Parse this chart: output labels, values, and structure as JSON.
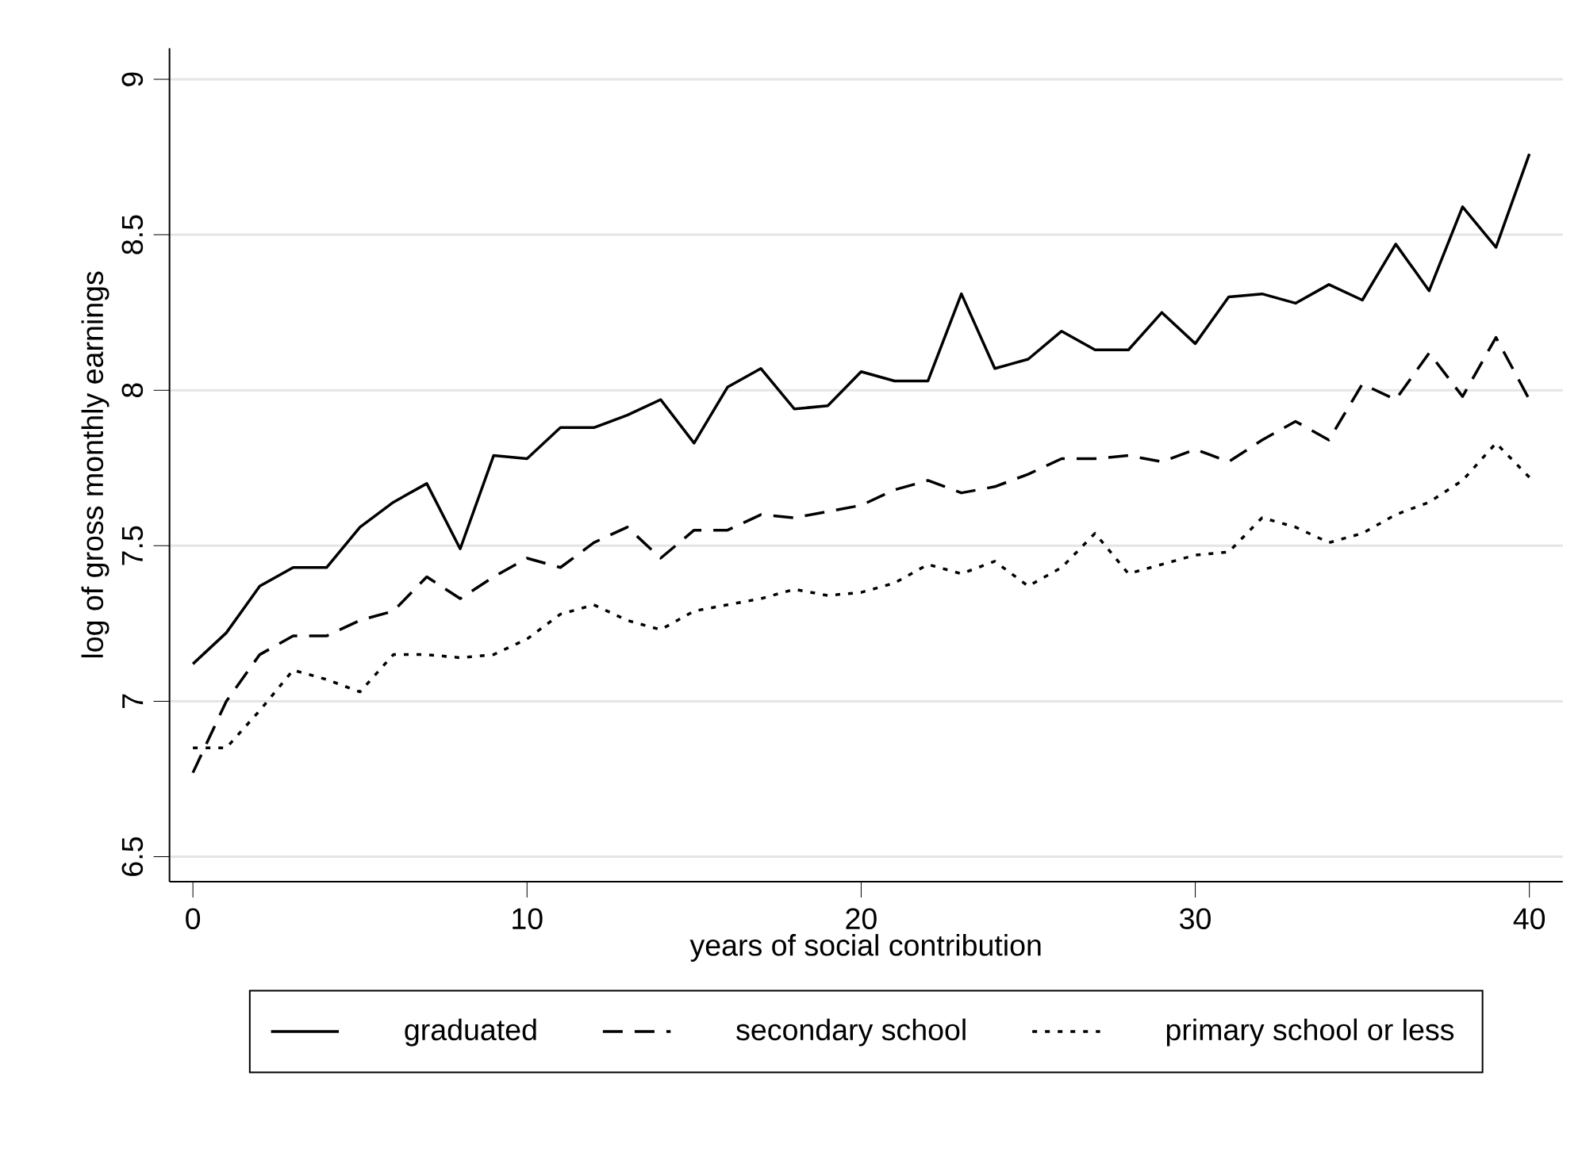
{
  "chart_data": {
    "type": "line",
    "xlabel": "years of social contribution",
    "ylabel": "log of gross monthly earnings",
    "x": [
      0,
      1,
      2,
      3,
      4,
      5,
      6,
      7,
      8,
      9,
      10,
      11,
      12,
      13,
      14,
      15,
      16,
      17,
      18,
      19,
      20,
      21,
      22,
      23,
      24,
      25,
      26,
      27,
      28,
      29,
      30,
      31,
      32,
      33,
      34,
      35,
      36,
      37,
      38,
      39,
      40
    ],
    "series": [
      {
        "name": "graduated",
        "color": "#000000",
        "line_style": "solid",
        "values": [
          7.12,
          7.22,
          7.37,
          7.43,
          7.43,
          7.56,
          7.64,
          7.7,
          7.49,
          7.79,
          7.78,
          7.88,
          7.88,
          7.92,
          7.97,
          7.83,
          8.01,
          8.07,
          7.94,
          7.95,
          8.06,
          8.03,
          8.03,
          8.31,
          8.07,
          8.1,
          8.19,
          8.13,
          8.13,
          8.25,
          8.15,
          8.3,
          8.31,
          8.28,
          8.34,
          8.29,
          8.47,
          8.32,
          8.59,
          8.46,
          8.76
        ]
      },
      {
        "name": "secondary school",
        "color": "#000000",
        "line_style": "dashed",
        "values": [
          6.77,
          7.0,
          7.15,
          7.21,
          7.21,
          7.26,
          7.29,
          7.4,
          7.33,
          7.4,
          7.46,
          7.43,
          7.51,
          7.56,
          7.46,
          7.55,
          7.55,
          7.6,
          7.59,
          7.61,
          7.63,
          7.68,
          7.71,
          7.67,
          7.69,
          7.73,
          7.78,
          7.78,
          7.79,
          7.77,
          7.81,
          7.77,
          7.84,
          7.9,
          7.84,
          8.02,
          7.97,
          8.12,
          7.98,
          8.17,
          7.97
        ]
      },
      {
        "name": "primary school or less",
        "color": "#000000",
        "line_style": "dotted",
        "values": [
          6.85,
          6.85,
          6.97,
          7.1,
          7.07,
          7.03,
          7.15,
          7.15,
          7.14,
          7.15,
          7.2,
          7.28,
          7.31,
          7.26,
          7.23,
          7.29,
          7.31,
          7.33,
          7.36,
          7.34,
          7.35,
          7.38,
          7.44,
          7.41,
          7.45,
          7.37,
          7.43,
          7.54,
          7.41,
          7.44,
          7.47,
          7.48,
          7.59,
          7.56,
          7.51,
          7.54,
          7.6,
          7.64,
          7.71,
          7.83,
          7.72
        ]
      }
    ],
    "xlim": [
      -0.7,
      41
    ],
    "ylim": [
      6.42,
      9.1
    ],
    "xticks": [
      0,
      10,
      20,
      30,
      40
    ],
    "yticks": [
      {
        "value": 6.5,
        "label": "6.5"
      },
      {
        "value": 7,
        "label": "7"
      },
      {
        "value": 7.5,
        "label": "7.5"
      },
      {
        "value": 8,
        "label": "8"
      },
      {
        "value": 8.5,
        "label": "8.5"
      },
      {
        "value": 9,
        "label": "9"
      }
    ],
    "grid": "y",
    "legend": "bottom",
    "marker": "none"
  }
}
